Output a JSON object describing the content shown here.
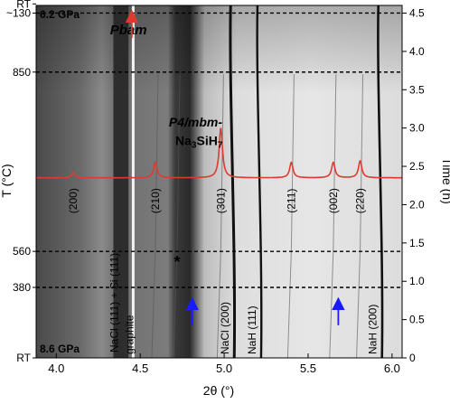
{
  "chart_data": {
    "type": "heatmap",
    "title": "",
    "xlabel": "2θ (°)",
    "ylabel_left": "T (°C)",
    "ylabel_right": "Time (h)",
    "xlim": [
      3.88,
      6.06
    ],
    "x_ticks": [
      "4.0",
      "4.5",
      "5.0",
      "5.5",
      "6.0"
    ],
    "x_tick_values": [
      4.0,
      4.5,
      5.0,
      5.5,
      6.0
    ],
    "ylim_time_h": [
      0.0,
      4.6
    ],
    "right_ticks": [
      "0",
      "0.5",
      "1.0",
      "1.5",
      "2.0",
      "2.5",
      "3.0",
      "3.5",
      "4.0",
      "4.5"
    ],
    "right_tick_values": [
      0,
      0.5,
      1.0,
      1.5,
      2.0,
      2.5,
      3.0,
      3.5,
      4.0,
      4.5
    ],
    "left_ticks": [
      {
        "label": "RT",
        "time_h": 0.0
      },
      {
        "label": "380",
        "time_h": 0.92
      },
      {
        "label": "560",
        "time_h": 1.39
      },
      {
        "label": "850",
        "time_h": 3.73
      },
      {
        "label": "~130",
        "time_h": 4.5
      },
      {
        "label": "RT",
        "time_h": 4.62
      }
    ],
    "dashed_lines_time_h": [
      0.92,
      1.39,
      3.73,
      4.5
    ],
    "pressure_labels": [
      {
        "text": "8.6 GPa",
        "position": "bottom-left"
      },
      {
        "text": "6.2 GPa",
        "position": "top-left"
      }
    ],
    "phase_labels": [
      {
        "text": "Pbam",
        "color": "#e03a2f"
      },
      {
        "text_line1": "P4/mbm-",
        "text_line2": "Na",
        "sub1": "3",
        "mid": "SiH",
        "sub2": "7",
        "color": "#e03a2f"
      }
    ],
    "reference_pattern": {
      "name": "P4/mbm-Na3SiH7",
      "color": "#e03a2f",
      "baseline_time_h": 2.35,
      "peaks": [
        {
          "hkl": "(200)",
          "two_theta": 4.1,
          "height_h": 0.07
        },
        {
          "hkl": "(210)",
          "two_theta": 4.59,
          "height_h": 0.2
        },
        {
          "hkl": "(301)",
          "two_theta": 4.98,
          "height_h": 0.65
        },
        {
          "hkl": "(211)",
          "two_theta": 5.4,
          "height_h": 0.2
        },
        {
          "hkl": "(002)",
          "two_theta": 5.65,
          "height_h": 0.2
        },
        {
          "hkl": "(220)",
          "two_theta": 5.81,
          "height_h": 0.22
        }
      ]
    },
    "vertical_labels": [
      {
        "text": "NaCl (111) + Si (111)",
        "two_theta": 4.4
      },
      {
        "text": "graphite",
        "two_theta": 4.49
      },
      {
        "text": "NaCl (200)",
        "two_theta": 5.06
      },
      {
        "text": "NaH (111)",
        "two_theta": 5.22
      },
      {
        "text": "NaH (200)",
        "two_theta": 5.94
      }
    ],
    "markers": [
      {
        "type": "star",
        "symbol": "*",
        "two_theta": 4.72,
        "time_h": 1.25,
        "color": "#1a1aff"
      },
      {
        "type": "arrow-up",
        "two_theta": 4.81,
        "time_h": 0.45,
        "color": "#1a1aff"
      },
      {
        "type": "arrow-up",
        "two_theta": 5.68,
        "time_h": 0.45,
        "color": "#1a1aff"
      },
      {
        "type": "arrow-up",
        "two_theta": 4.45,
        "time_h": 4.2,
        "color": "#e03a2f"
      }
    ],
    "colors": {
      "reference": "#e03a2f",
      "markers": "#1a1aff"
    }
  }
}
